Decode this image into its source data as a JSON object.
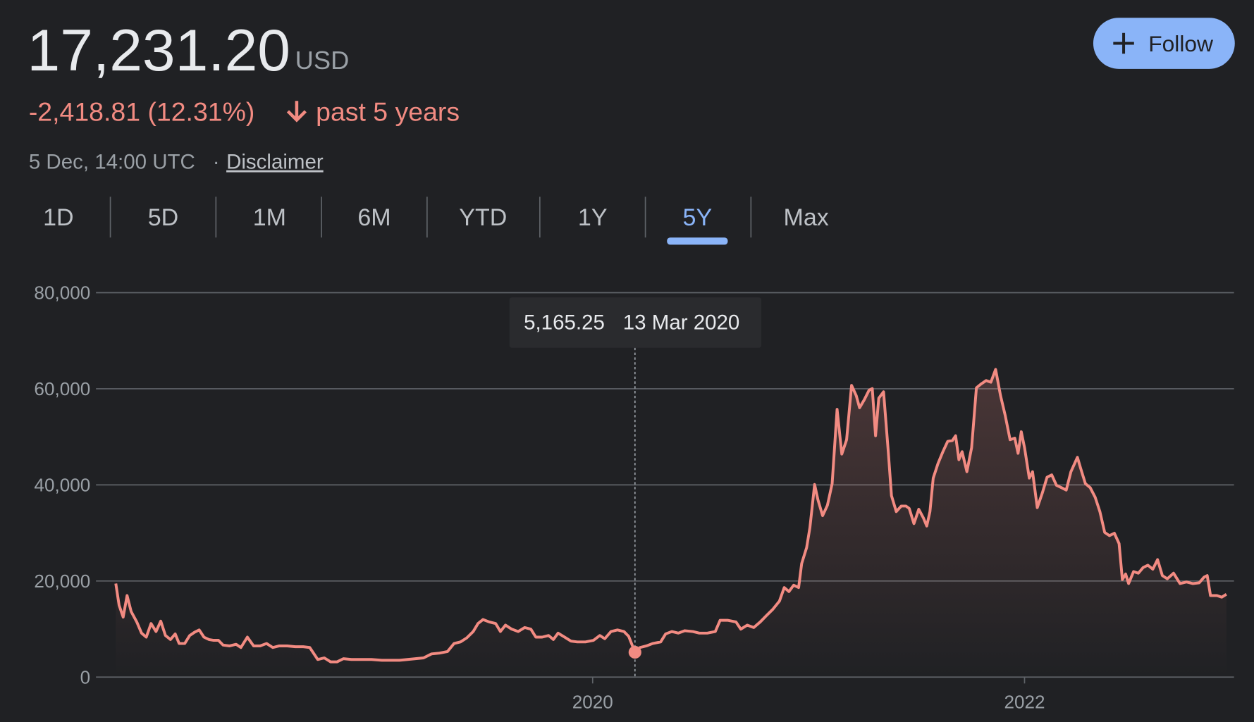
{
  "header": {
    "price": "17,231.20",
    "currency": "USD",
    "change": "-2,418.81 (12.31%)",
    "period": "past 5 years",
    "timestamp": "5 Dec, 14:00 UTC",
    "separator": "·",
    "disclaimer": "Disclaimer",
    "follow": "Follow"
  },
  "tabs": [
    "1D",
    "5D",
    "1M",
    "6M",
    "YTD",
    "1Y",
    "5Y",
    "Max"
  ],
  "selected_tab": "5Y",
  "chart_data": {
    "type": "line",
    "color": "#f28b82",
    "x": [
      2017.792,
      2017.807,
      2017.826,
      2017.844,
      2017.863,
      2017.889,
      2017.911,
      2017.933,
      2017.955,
      2017.978,
      2018.0,
      2018.022,
      2018.045,
      2018.067,
      2018.085,
      2018.111,
      2018.134,
      2018.156,
      2018.178,
      2018.2,
      2018.223,
      2018.245,
      2018.267,
      2018.289,
      2018.319,
      2018.349,
      2018.371,
      2018.401,
      2018.43,
      2018.46,
      2018.49,
      2018.519,
      2018.549,
      2018.586,
      2018.623,
      2018.66,
      2018.69,
      2018.727,
      2018.757,
      2018.787,
      2018.816,
      2018.846,
      2018.883,
      2018.928,
      2018.976,
      2019.024,
      2019.069,
      2019.106,
      2019.143,
      2019.18,
      2019.217,
      2019.254,
      2019.291,
      2019.328,
      2019.358,
      2019.388,
      2019.417,
      2019.447,
      2019.469,
      2019.492,
      2019.521,
      2019.551,
      2019.573,
      2019.596,
      2019.625,
      2019.655,
      2019.685,
      2019.714,
      2019.737,
      2019.766,
      2019.796,
      2019.818,
      2019.84,
      2019.87,
      2019.9,
      2019.929,
      2019.967,
      2020.004,
      2020.033,
      2020.056,
      2020.085,
      2020.115,
      2020.145,
      2020.167,
      2020.196,
      2020.219,
      2020.249,
      2020.278,
      2020.315,
      2020.338,
      2020.367,
      2020.397,
      2020.427,
      2020.464,
      2020.494,
      2020.531,
      2020.568,
      2020.59,
      2020.627,
      2020.664,
      2020.686,
      2020.716,
      2020.746,
      2020.776,
      2020.805,
      2020.835,
      2020.865,
      2020.887,
      2020.909,
      2020.931,
      2020.954,
      2020.968,
      2020.991,
      2021.006,
      2021.028,
      2021.043,
      2021.065,
      2021.087,
      2021.109,
      2021.132,
      2021.154,
      2021.176,
      2021.199,
      2021.221,
      2021.236,
      2021.258,
      2021.28,
      2021.295,
      2021.31,
      2021.325,
      2021.347,
      2021.369,
      2021.384,
      2021.406,
      2021.429,
      2021.451,
      2021.466,
      2021.488,
      2021.51,
      2021.532,
      2021.547,
      2021.562,
      2021.577,
      2021.599,
      2021.622,
      2021.644,
      2021.666,
      2021.681,
      2021.696,
      2021.711,
      2021.733,
      2021.755,
      2021.777,
      2021.8,
      2021.822,
      2021.844,
      2021.866,
      2021.889,
      2021.911,
      2021.933,
      2021.955,
      2021.97,
      2021.985,
      2022.0,
      2022.022,
      2022.037,
      2022.059,
      2022.082,
      2022.104,
      2022.126,
      2022.148,
      2022.171,
      2022.193,
      2022.215,
      2022.245,
      2022.26,
      2022.282,
      2022.304,
      2022.327,
      2022.349,
      2022.371,
      2022.393,
      2022.416,
      2022.438,
      2022.453,
      2022.468,
      2022.482,
      2022.505,
      2022.527,
      2022.549,
      2022.571,
      2022.594,
      2022.616,
      2022.638,
      2022.661,
      2022.69,
      2022.72,
      2022.75,
      2022.779,
      2022.809,
      2022.831,
      2022.846,
      2022.861,
      2022.891,
      2022.913,
      2022.935
    ],
    "values": [
      19460,
      14970,
      12470,
      16960,
      13640,
      11480,
      9150,
      8320,
      11140,
      9480,
      11640,
      8650,
      7820,
      8980,
      6990,
      6990,
      8650,
      9310,
      9810,
      8320,
      7820,
      7650,
      7650,
      6650,
      6490,
      6820,
      6150,
      8320,
      6490,
      6490,
      6990,
      6150,
      6490,
      6490,
      6320,
      6320,
      6150,
      3660,
      3990,
      3160,
      3160,
      3830,
      3660,
      3660,
      3660,
      3490,
      3490,
      3490,
      3660,
      3830,
      3990,
      4820,
      4990,
      5320,
      6990,
      7320,
      8150,
      9480,
      11140,
      11970,
      11480,
      11140,
      9480,
      10810,
      9980,
      9480,
      10310,
      9980,
      8320,
      8320,
      8650,
      7820,
      9150,
      8320,
      7480,
      7320,
      7320,
      7650,
      8650,
      7980,
      9480,
      9810,
      9480,
      8480,
      5165.25,
      6150,
      6490,
      6990,
      7320,
      8980,
      9480,
      9150,
      9650,
      9480,
      9150,
      9150,
      9480,
      11810,
      11810,
      11480,
      9980,
      10810,
      10310,
      11480,
      12810,
      14140,
      15800,
      18630,
      17800,
      19130,
      18630,
      23620,
      26940,
      31100,
      40080,
      36920,
      33600,
      35760,
      40250,
      55720,
      46400,
      49400,
      60710,
      58540,
      56050,
      57710,
      59710,
      60040,
      50230,
      58040,
      59380,
      46900,
      37750,
      34430,
      35590,
      35590,
      35090,
      31930,
      34930,
      33100,
      31430,
      34430,
      41410,
      44410,
      46900,
      49060,
      49230,
      50230,
      45240,
      46900,
      42740,
      47730,
      60210,
      61040,
      61700,
      61370,
      64030,
      58540,
      54390,
      49400,
      49730,
      46570,
      51060,
      47730,
      41410,
      42740,
      35260,
      38250,
      41580,
      42080,
      39920,
      39420,
      38920,
      42740,
      45740,
      43410,
      40250,
      39420,
      37420,
      34430,
      30100,
      29440,
      29940,
      27780,
      20290,
      21460,
      19460,
      21950,
      21620,
      22790,
      23280,
      22450,
      24450,
      21120,
      20460,
      21620,
      19460,
      19790,
      19460,
      19630,
      20790,
      21120,
      16960,
      16960,
      16630,
      17231.2
    ],
    "xlim": [
      2017.7,
      2022.97
    ],
    "xticks": [
      2020,
      2022
    ],
    "ylim": [
      0,
      80000
    ],
    "yticks": [
      0,
      {
        "value": 20000,
        "label": "20,000"
      },
      {
        "value": 40000,
        "label": "40,000"
      },
      {
        "value": 60000,
        "label": "60,000"
      },
      {
        "value": 80000,
        "label": "80,000"
      }
    ],
    "grid": true,
    "tooltip": {
      "x": 2020.196,
      "value_label": "5,165.25",
      "date": "13 Mar 2020"
    }
  }
}
